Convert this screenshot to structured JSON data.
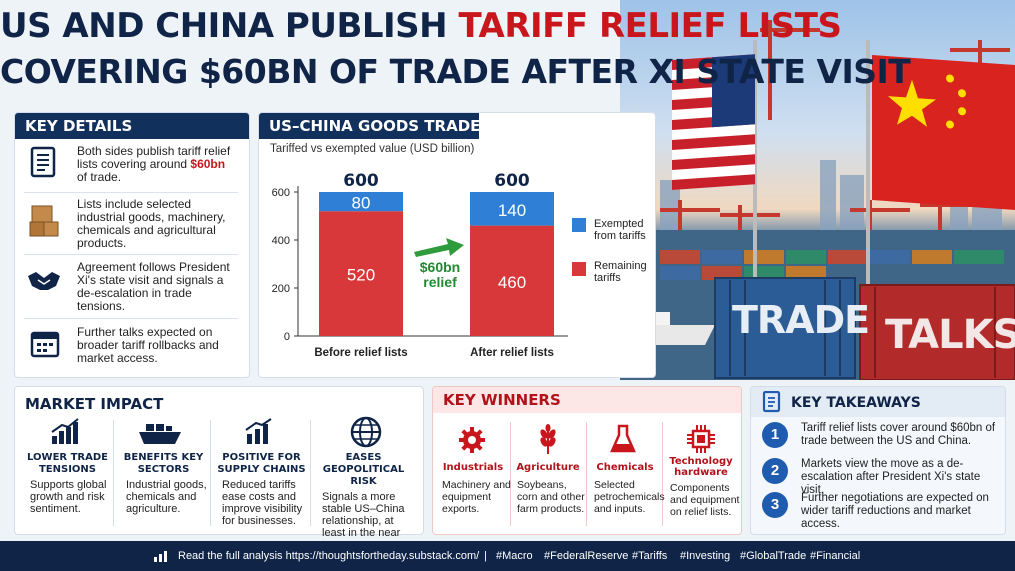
{
  "header": {
    "title_part1": "US AND CHINA PUBLISH ",
    "title_highlight": "TARIFF RELIEF LISTS",
    "title_line2": "COVERING $60BN OF TRADE AFTER XI STATE VISIT"
  },
  "key_details": {
    "heading": "KEY DETAILS",
    "items": [
      {
        "icon": "document-icon",
        "text_before": "Both sides publish tariff relief lists covering around ",
        "highlight": "$60bn",
        "text_after": " of trade."
      },
      {
        "icon": "boxes-icon",
        "text": "Lists include selected industrial goods, machinery, chemicals and agricultural products."
      },
      {
        "icon": "handshake-icon",
        "text": "Agreement follows President Xi's state visit and signals a de-escalation in trade tensions."
      },
      {
        "icon": "calendar-icon",
        "text": "Further talks expected on broader tariff rollbacks and market access."
      }
    ]
  },
  "goods_trade": {
    "heading": "US–CHINA GOODS TRADE",
    "subtitle": "Tariffed vs exempted value (USD billion)",
    "relief_callout": {
      "amount": "$60bn",
      "label": "relief"
    }
  },
  "chart_data": {
    "type": "bar",
    "stacked": true,
    "categories": [
      "Before relief lists",
      "After relief lists"
    ],
    "totals": [
      600,
      600
    ],
    "series": [
      {
        "name": "Remaining tariffs",
        "values": [
          520,
          460
        ],
        "color": "#d8383a"
      },
      {
        "name": "Exempted from tariffs",
        "values": [
          80,
          140
        ],
        "color": "#2f7fd6"
      }
    ],
    "legend": [
      "Exempted from tariffs",
      "Remaining tariffs"
    ],
    "legend_placement": "right",
    "ylim": [
      0,
      600
    ],
    "yticks": [
      0,
      200,
      400,
      600
    ],
    "grid": false
  },
  "scene": {
    "container_left": "TRADE",
    "container_right": "TALKS"
  },
  "market_impact": {
    "heading": "MARKET IMPACT",
    "items": [
      {
        "icon": "rising-chart-icon",
        "title": "LOWER TRADE TENSIONS",
        "desc": "Supports global growth and risk sentiment."
      },
      {
        "icon": "cargo-ship-icon",
        "title": "BENEFITS KEY SECTORS",
        "desc": "Industrial goods, chemicals and agriculture."
      },
      {
        "icon": "bar-chart-icon",
        "title": "POSITIVE FOR SUPPLY CHAINS",
        "desc": "Reduced tariffs ease costs and improve visibility for businesses."
      },
      {
        "icon": "globe-icon",
        "title": "EASES GEOPOLITICAL RISK",
        "desc": "Signals a more stable US–China relationship, at least in the near term."
      }
    ]
  },
  "key_winners": {
    "heading": "KEY WINNERS",
    "items": [
      {
        "icon": "gear-icon",
        "title": "Industrials",
        "desc": "Machinery and equipment exports."
      },
      {
        "icon": "wheat-icon",
        "title": "Agriculture",
        "desc": "Soybeans, corn and other farm products."
      },
      {
        "icon": "flask-icon",
        "title": "Chemicals",
        "desc": "Selected petrochemicals and inputs."
      },
      {
        "icon": "chip-icon",
        "title": "Technology hardware",
        "desc": "Components and equipment on relief lists."
      }
    ]
  },
  "key_takeaways": {
    "heading": "KEY TAKEAWAYS",
    "items": [
      {
        "num": "1",
        "text": "Tariff relief lists cover around $60bn of trade between the US and China."
      },
      {
        "num": "2",
        "text": "Markets view the move as a de-escalation after President Xi's state visit."
      },
      {
        "num": "3",
        "text": "Further negotiations are expected on wider tariff reductions and market access."
      }
    ]
  },
  "footer": {
    "text": "Read the full analysis https://thoughtsfortheday.substack.com/",
    "divider": "|",
    "tags": [
      "#Macro",
      "#FederalReserve",
      "#Tariffs",
      "#Investing",
      "#GlobalTrade",
      "#Financial"
    ]
  },
  "colors": {
    "navy": "#0f2447",
    "red": "#c9161d",
    "blue": "#2f7fd6",
    "bar_red": "#d8383a",
    "green": "#2e9b3c"
  }
}
